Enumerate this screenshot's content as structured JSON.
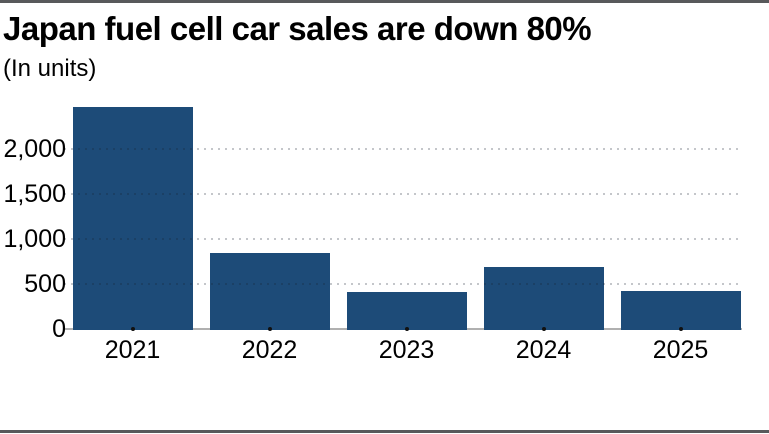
{
  "chart_data": {
    "type": "bar",
    "title": "Japan fuel cell car sales are down 80%",
    "subtitle": "(In units)",
    "categories": [
      "2021",
      "2022",
      "2023",
      "2024",
      "2025"
    ],
    "values": [
      2465,
      845,
      410,
      690,
      425
    ],
    "xlabel": "",
    "ylabel": "(In units)",
    "yticks": [
      0,
      500,
      1000,
      1500,
      2000
    ],
    "ytick_labels": [
      "0",
      "500",
      "1,000",
      "1,500",
      "2,000"
    ],
    "ylim": [
      0,
      2530
    ],
    "grid": "horizontal-dotted",
    "legend": "none",
    "colors": {
      "bar": "#1d4b78",
      "grid_dot": "rgba(20,30,45,0.25)",
      "axis_line": "#b0b0b0",
      "tick_dot": "#111111",
      "text": "#000000",
      "frame_border": "#58595b",
      "background": "#ffffff"
    }
  }
}
